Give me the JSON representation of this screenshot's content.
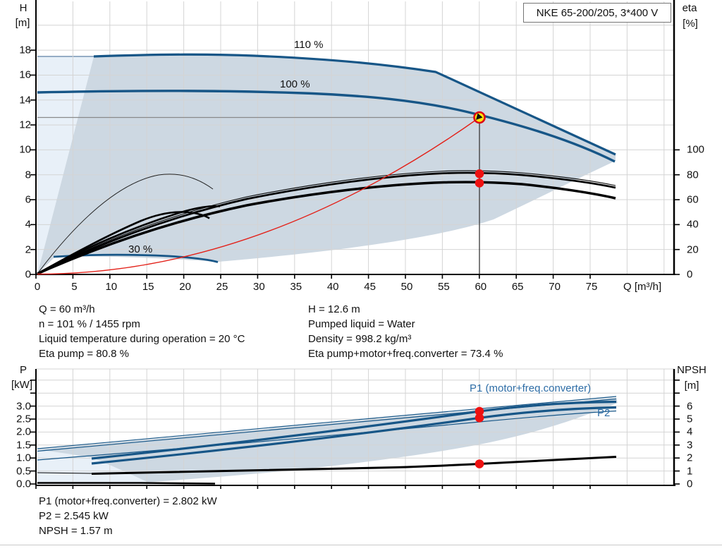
{
  "window": {
    "title_box": "NKE 65-200/205, 3*400 V"
  },
  "colors": {
    "curve_blue": "#175687",
    "label_blue": "#2e6da6",
    "envelope_fill": "#cdd8e2",
    "min_flow_fill": "#e8f0f8",
    "system_curve_red": "#e32119",
    "duty_point_yellow": "#ffe60a",
    "marker_red": "#ee1111",
    "grid_gray": "#d4d4d4"
  },
  "top_chart": {
    "left_axis": {
      "name": "H",
      "unit": "[m]",
      "ticks": [
        "0",
        "2",
        "4",
        "6",
        "8",
        "10",
        "12",
        "14",
        "16",
        "18"
      ]
    },
    "right_axis": {
      "name": "eta",
      "unit": "[%]",
      "ticks": [
        "0",
        "20",
        "40",
        "60",
        "80",
        "100"
      ]
    },
    "x_axis": {
      "label": "Q [m³/h]",
      "ticks": [
        "0",
        "5",
        "10",
        "15",
        "20",
        "25",
        "30",
        "35",
        "40",
        "45",
        "50",
        "55",
        "60",
        "65",
        "70",
        "75"
      ]
    },
    "curve_labels": {
      "speed_110": "110 %",
      "speed_100": "100 %",
      "speed_30": "30 %"
    }
  },
  "bottom_chart": {
    "left_axis": {
      "name": "P",
      "unit": "[kW]",
      "ticks": [
        "0.0",
        "0.5",
        "1.0",
        "1.5",
        "2.0",
        "2.5",
        "3.0"
      ]
    },
    "right_axis": {
      "name": "NPSH",
      "unit": "[m]",
      "ticks": [
        "0",
        "1",
        "2",
        "3",
        "4",
        "5",
        "6"
      ]
    },
    "curve_labels": {
      "p1": "P1 (motor+freq.converter)",
      "p2": "P2"
    }
  },
  "results": {
    "col1": [
      "Q = 60 m³/h",
      "n = 101 % / 1455 rpm",
      "Liquid temperature during operation = 20 °C",
      "Eta pump = 80.8 %"
    ],
    "col2": [
      "H = 12.6 m",
      "Pumped liquid = Water",
      "Density = 998.2 kg/m³",
      "Eta pump+motor+freq.converter = 73.4 %"
    ],
    "bottom": [
      "P1 (motor+freq.converter) = 2.802 kW",
      "P2 = 2.545 kW",
      "NPSH = 1.57 m"
    ]
  },
  "chart_data": [
    {
      "type": "line",
      "title": "NKE 65-200/205, 3*400 V",
      "xlabel": "Q [m³/h]",
      "ylabel_left": "H [m]",
      "ylabel_right": "eta [%]",
      "xlim": [
        0,
        86.3
      ],
      "ylim_left": [
        0,
        22
      ],
      "eta_axis_mapping": "eta 0-100 % spans H 0-10 m on the shared y scale",
      "grid": true,
      "legend_position": "inline-curve-labels",
      "series": [
        {
          "name": "head_110pct",
          "label": "110 %",
          "color": "#175687",
          "x": [
            7.8,
            15,
            25,
            35,
            45,
            54,
            60,
            65,
            70,
            75,
            78.5
          ],
          "y": [
            17.5,
            17.55,
            17.6,
            17.4,
            17.0,
            16.3,
            15.3,
            14.3,
            13.0,
            11.4,
            9.6
          ]
        },
        {
          "name": "head_100pct",
          "label": "100 %",
          "color": "#175687",
          "x": [
            0,
            10,
            20,
            30,
            40,
            45,
            50,
            55,
            60,
            65,
            70,
            75,
            78.5
          ],
          "y": [
            14.6,
            14.7,
            14.75,
            14.6,
            14.3,
            14.0,
            13.5,
            13.0,
            12.45,
            11.7,
            10.8,
            9.9,
            9.05
          ]
        },
        {
          "name": "head_30pct",
          "label": "30 %",
          "color": "#175687",
          "x": [
            2,
            8,
            14,
            19,
            22,
            24.3
          ],
          "y": [
            1.35,
            1.45,
            1.45,
            1.35,
            1.2,
            1.0
          ]
        },
        {
          "name": "eta_pump_pct",
          "label": "Eta pump",
          "color": "#000000",
          "x": [
            0,
            5,
            10,
            15,
            20,
            25,
            30,
            35,
            40,
            45,
            50,
            55,
            60,
            65,
            70,
            75,
            78.5
          ],
          "y": [
            0,
            15,
            30,
            42,
            52,
            60,
            66,
            71,
            74.5,
            77.5,
            79.3,
            80.4,
            80.8,
            80.2,
            78.3,
            74.5,
            69.5
          ]
        },
        {
          "name": "eta_pump_motor_freq_pct",
          "label": "Eta pump+motor+freq.converter",
          "color": "#000000",
          "x": [
            0,
            10,
            20,
            30,
            40,
            50,
            55,
            60,
            65,
            70,
            75,
            78.5
          ],
          "y": [
            0,
            26,
            46,
            59,
            67,
            71.5,
            73,
            73.4,
            72.6,
            70.5,
            66.5,
            61
          ]
        },
        {
          "name": "system_curve",
          "label": "system curve to duty point",
          "color": "#e32119",
          "x": [
            0,
            15,
            30,
            45,
            60
          ],
          "y": [
            0,
            0.79,
            3.15,
            7.09,
            12.6
          ]
        }
      ],
      "operating_envelope": "shaded region between 30 % and 110 % speed curves, min-flow line on the left, max curve kink near Q=54, envelope tip near Q=78.5 / H=9.6",
      "duty_point": {
        "Q": 60,
        "H": 12.6,
        "eta_pump": 80.8,
        "eta_total": 73.4,
        "speed_pct": 101,
        "rpm": 1455
      }
    },
    {
      "type": "line",
      "xlabel": "Q [m³/h]",
      "ylabel_left": "P [kW]",
      "ylabel_right": "NPSH [m]",
      "xlim": [
        0,
        86.3
      ],
      "ylim_left": [
        0,
        4.45
      ],
      "ylim_right": [
        0,
        8.9
      ],
      "grid": true,
      "series": [
        {
          "name": "P1_max_110pct",
          "color": "#175687",
          "x": [
            0,
            20,
            40,
            60,
            78.5
          ],
          "y": [
            1.36,
            1.8,
            2.3,
            2.85,
            3.35
          ]
        },
        {
          "name": "P1_motor_freq_converter",
          "label": "P1 (motor+freq.converter)",
          "color": "#175687",
          "x": [
            7.5,
            20,
            30,
            40,
            50,
            60,
            70,
            78.5
          ],
          "y": [
            0.98,
            1.55,
            1.85,
            2.15,
            2.48,
            2.802,
            3.0,
            3.17
          ]
        },
        {
          "name": "P2",
          "label": "P2",
          "color": "#175687",
          "x": [
            7.5,
            20,
            30,
            40,
            50,
            60,
            70,
            78.5
          ],
          "y": [
            0.79,
            1.3,
            1.6,
            1.9,
            2.2,
            2.545,
            2.8,
            2.95
          ]
        },
        {
          "name": "NPSH",
          "label": "NPSH",
          "color": "#000000",
          "axis": "right",
          "x": [
            7.5,
            20,
            30,
            42,
            50,
            60,
            70,
            78.5
          ],
          "y": [
            0.8,
            0.85,
            0.95,
            1.2,
            1.35,
            1.57,
            1.85,
            2.1
          ]
        }
      ],
      "duty_point": {
        "Q": 60,
        "P1_kW": 2.802,
        "P2_kW": 2.545,
        "NPSH_m": 1.57
      }
    }
  ]
}
